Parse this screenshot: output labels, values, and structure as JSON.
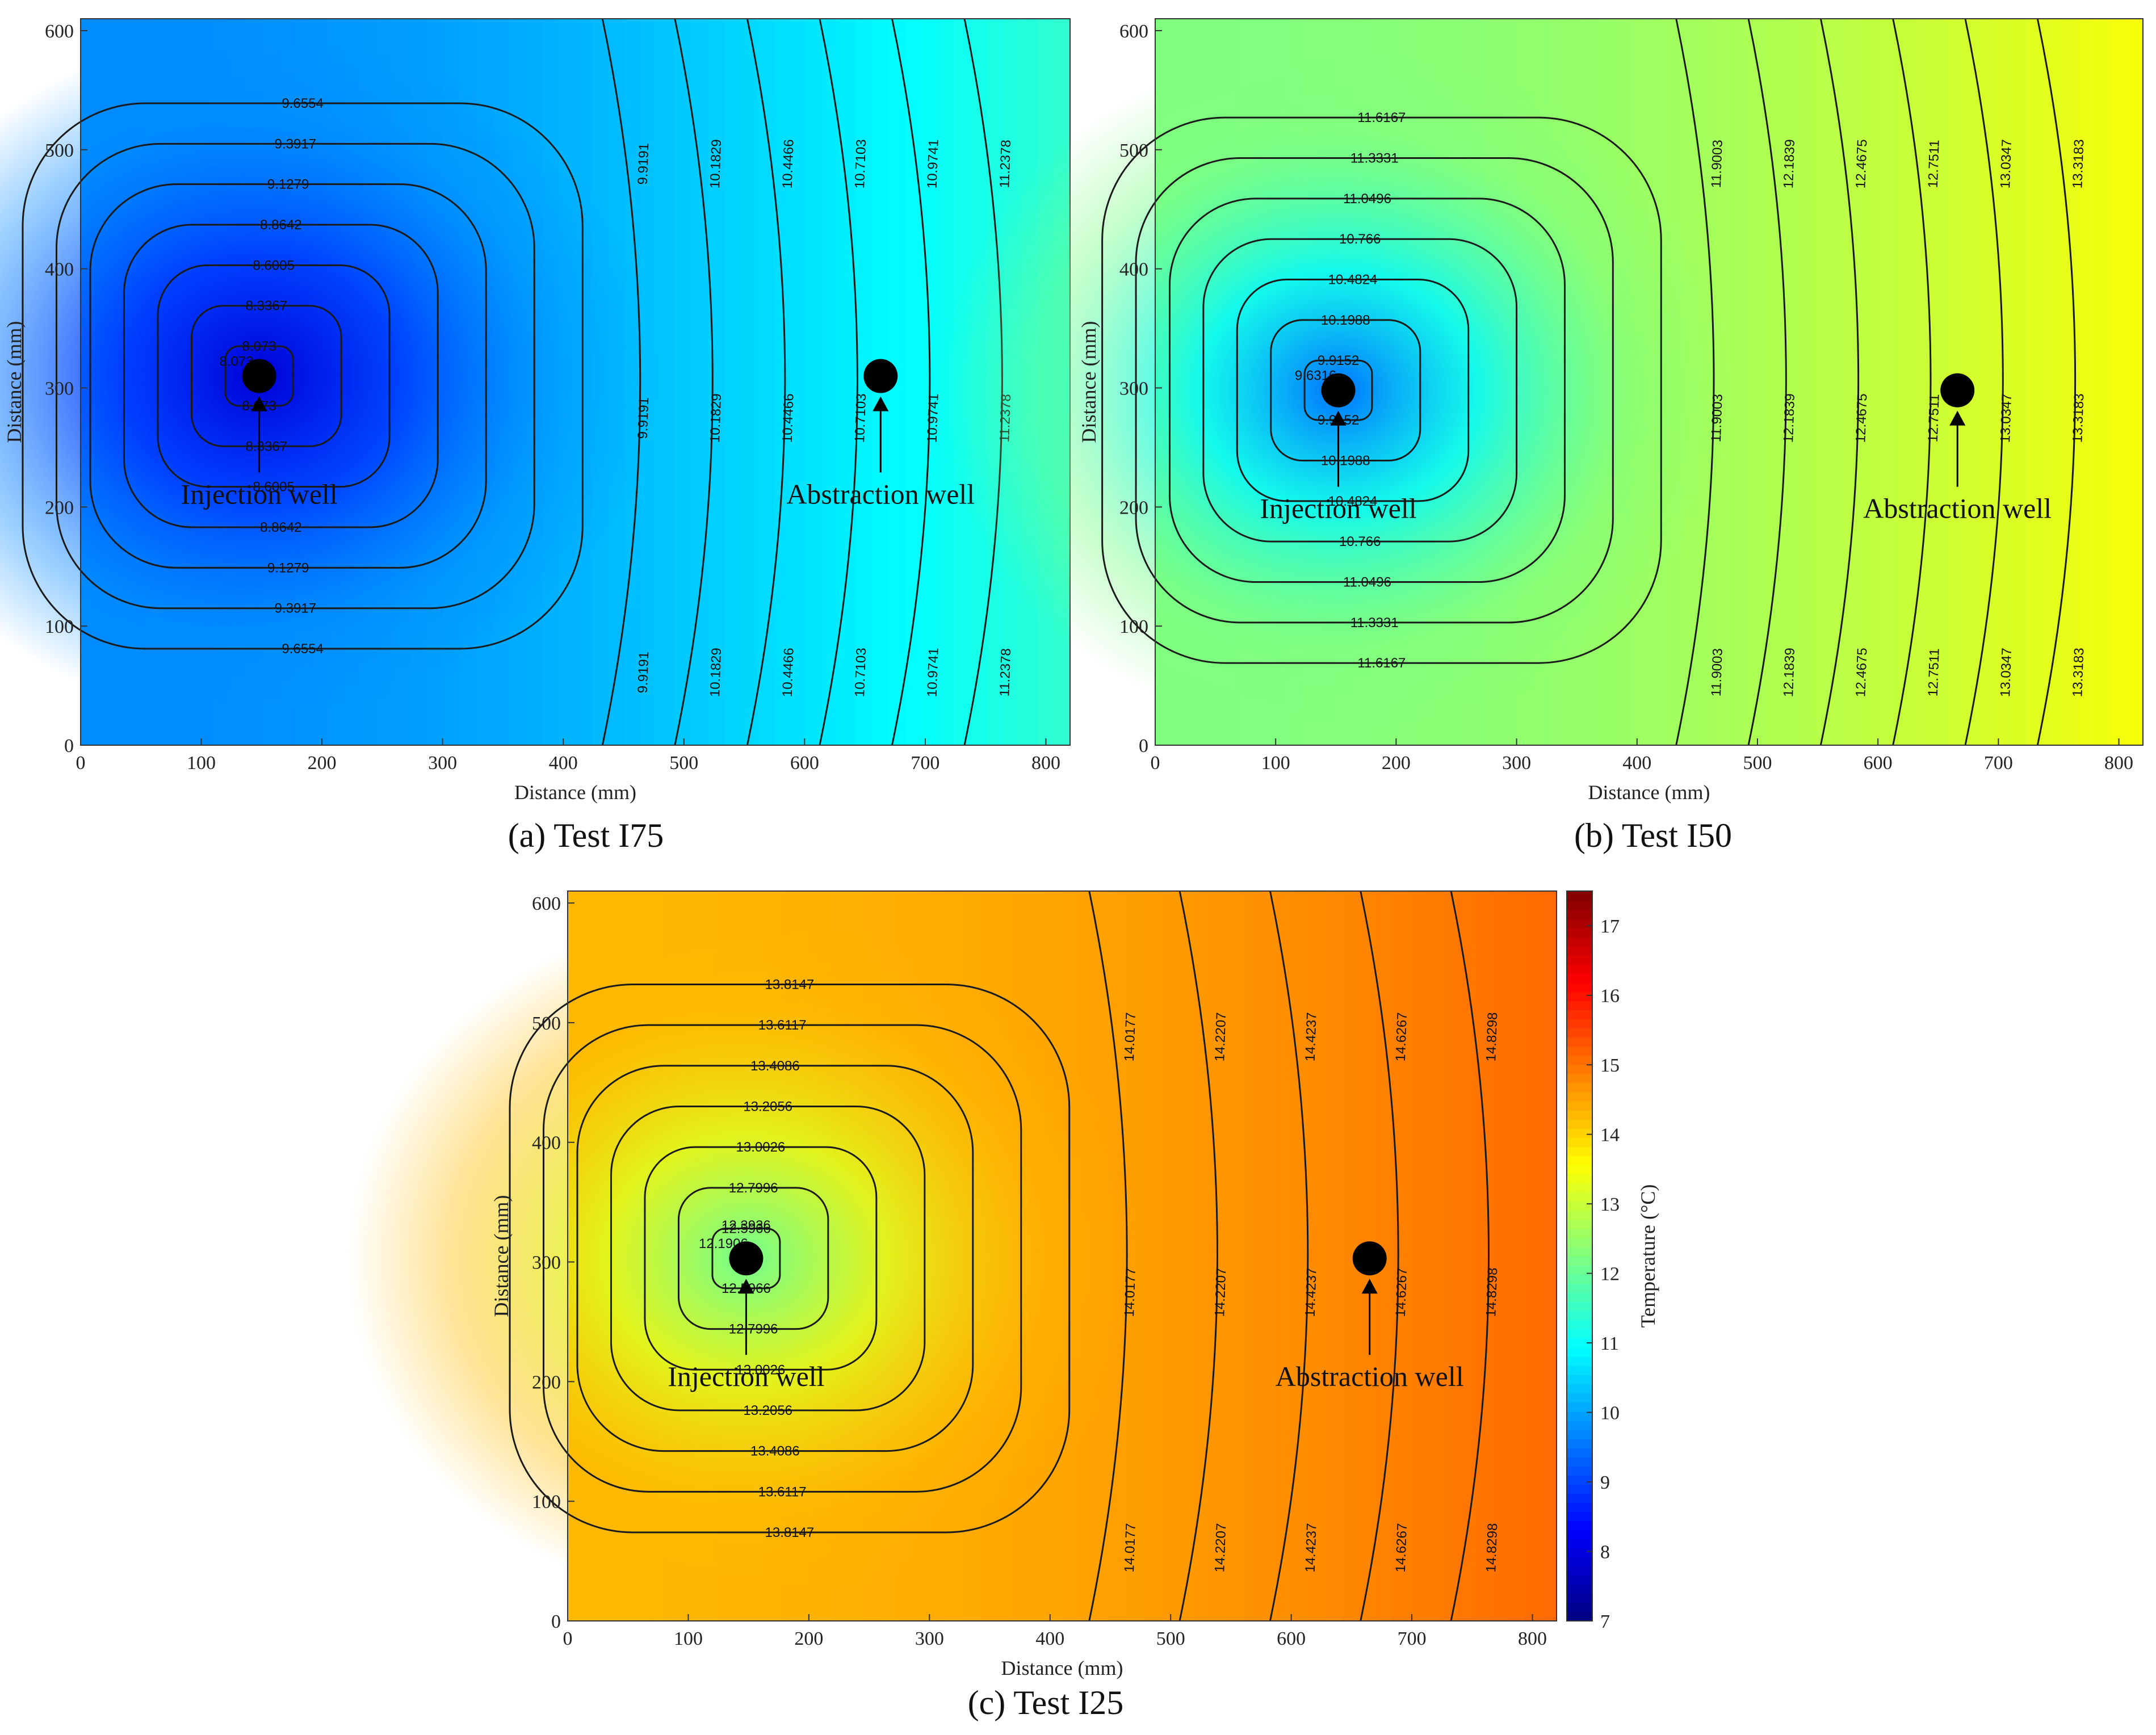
{
  "chart_data": [
    {
      "type": "contour",
      "caption": "(a) Test I75",
      "xlabel": "Distance (mm)",
      "ylabel": "Distance (mm)",
      "xlim": [
        0,
        820
      ],
      "ylim": [
        0,
        610
      ],
      "xticks": [
        0,
        100,
        200,
        300,
        400,
        500,
        600,
        700,
        800
      ],
      "yticks": [
        0,
        100,
        200,
        300,
        400,
        500,
        600
      ],
      "color_range": [
        7,
        17.5
      ],
      "contour_levels": [
        "8.073",
        "8.3367",
        "8.6005",
        "8.8642",
        "9.1279",
        "9.3917",
        "9.6554",
        "9.9191",
        "10.1829",
        "10.4466",
        "10.7103",
        "10.9741",
        "11.2378"
      ],
      "center_label": "8.073",
      "wells": [
        {
          "name": "Injection well",
          "x": 148,
          "y": 310
        },
        {
          "name": "Abstraction well",
          "x": 663,
          "y": 310
        }
      ],
      "field": {
        "center": [
          148,
          310
        ],
        "t_center": 7.9,
        "t_left": 9.75,
        "t_right": 11.45
      }
    },
    {
      "type": "contour",
      "caption": "(b) Test I50",
      "xlabel": "Distance (mm)",
      "ylabel": "Distance (mm)",
      "xlim": [
        0,
        820
      ],
      "ylim": [
        0,
        610
      ],
      "xticks": [
        0,
        100,
        200,
        300,
        400,
        500,
        600,
        700,
        800
      ],
      "yticks": [
        0,
        100,
        200,
        300,
        400,
        500,
        600
      ],
      "color_range": [
        7,
        17.5
      ],
      "contour_levels": [
        "9.9152",
        "10.1988",
        "10.4824",
        "10.766",
        "11.0496",
        "11.3331",
        "11.6167",
        "11.9003",
        "12.1839",
        "12.4675",
        "12.7511",
        "13.0347",
        "13.3183"
      ],
      "center_label": "9.6316",
      "wells": [
        {
          "name": "Injection well",
          "x": 152,
          "y": 298
        },
        {
          "name": "Abstraction well",
          "x": 666,
          "y": 298
        }
      ],
      "field": {
        "center": [
          152,
          298
        ],
        "t_center": 9.5,
        "t_left": 12.25,
        "t_right": 13.5
      }
    },
    {
      "type": "contour",
      "caption": "(c) Test I25",
      "xlabel": "Distance (mm)",
      "ylabel": "Distance (mm)",
      "xlim": [
        0,
        820
      ],
      "ylim": [
        0,
        610
      ],
      "xticks": [
        0,
        100,
        200,
        300,
        400,
        500,
        600,
        700,
        800
      ],
      "yticks": [
        0,
        100,
        200,
        300,
        400,
        500,
        600
      ],
      "color_range": [
        7,
        17.5
      ],
      "contour_levels": [
        "12.5966",
        "12.7996",
        "13.0026",
        "13.2056",
        "13.4086",
        "13.6117",
        "13.8147",
        "14.0177",
        "14.2207",
        "14.4237",
        "14.6267",
        "14.8298"
      ],
      "center_label": "12.1906",
      "inner_label": "12.3936",
      "wells": [
        {
          "name": "Injection well",
          "x": 148,
          "y": 303
        },
        {
          "name": "Abstraction well",
          "x": 665,
          "y": 303
        }
      ],
      "field": {
        "center": [
          148,
          303
        ],
        "t_center": 12.1,
        "t_left": 14.3,
        "t_right": 15.1
      }
    }
  ],
  "colorbar": {
    "label": "Temperature (°C)",
    "ticks": [
      7,
      8,
      9,
      10,
      11,
      12,
      13,
      14,
      15,
      16,
      17
    ],
    "range": [
      7,
      17.5
    ]
  }
}
